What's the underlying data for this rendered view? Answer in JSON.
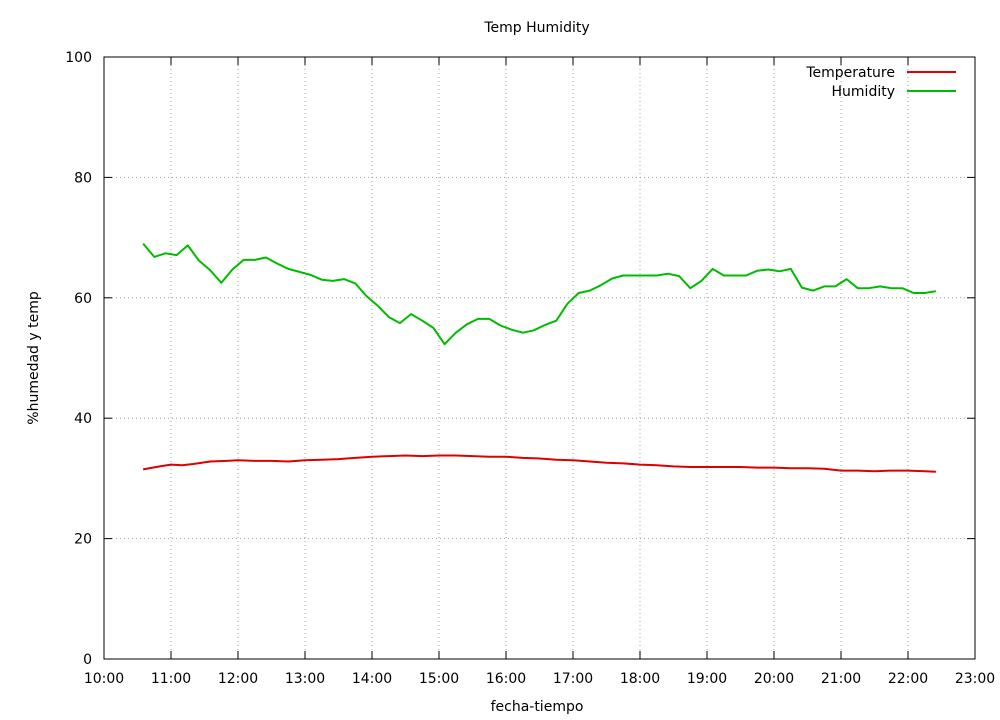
{
  "chart_data": {
    "type": "line",
    "title": "Temp Humidity",
    "xlabel": "fecha-tiempo",
    "ylabel": "%humedad y temp",
    "xlim": [
      "10:00",
      "23:00"
    ],
    "ylim": [
      0,
      100
    ],
    "x_ticks": [
      "10:00",
      "11:00",
      "12:00",
      "13:00",
      "14:00",
      "15:00",
      "16:00",
      "17:00",
      "18:00",
      "19:00",
      "20:00",
      "21:00",
      "22:00",
      "23:00"
    ],
    "y_ticks": [
      0,
      20,
      40,
      60,
      80,
      100
    ],
    "grid": true,
    "legend_position": "top-right",
    "series": [
      {
        "name": "Temperature",
        "color": "#dd0000",
        "points": [
          [
            "10:35",
            31.5
          ],
          [
            "10:50",
            32.0
          ],
          [
            "11:00",
            32.3
          ],
          [
            "11:10",
            32.2
          ],
          [
            "11:20",
            32.4
          ],
          [
            "11:35",
            32.8
          ],
          [
            "11:50",
            32.9
          ],
          [
            "12:00",
            33.0
          ],
          [
            "12:15",
            32.9
          ],
          [
            "12:30",
            32.9
          ],
          [
            "12:45",
            32.8
          ],
          [
            "13:00",
            33.0
          ],
          [
            "13:15",
            33.1
          ],
          [
            "13:30",
            33.2
          ],
          [
            "13:45",
            33.4
          ],
          [
            "14:00",
            33.6
          ],
          [
            "14:15",
            33.7
          ],
          [
            "14:30",
            33.8
          ],
          [
            "14:45",
            33.7
          ],
          [
            "15:00",
            33.8
          ],
          [
            "15:15",
            33.8
          ],
          [
            "15:30",
            33.7
          ],
          [
            "15:45",
            33.6
          ],
          [
            "16:00",
            33.6
          ],
          [
            "16:15",
            33.4
          ],
          [
            "16:30",
            33.3
          ],
          [
            "16:45",
            33.1
          ],
          [
            "17:00",
            33.0
          ],
          [
            "17:15",
            32.8
          ],
          [
            "17:30",
            32.6
          ],
          [
            "17:45",
            32.5
          ],
          [
            "18:00",
            32.3
          ],
          [
            "18:15",
            32.2
          ],
          [
            "18:30",
            32.0
          ],
          [
            "18:45",
            31.9
          ],
          [
            "19:00",
            31.9
          ],
          [
            "19:15",
            31.9
          ],
          [
            "19:30",
            31.9
          ],
          [
            "19:45",
            31.8
          ],
          [
            "20:00",
            31.8
          ],
          [
            "20:15",
            31.7
          ],
          [
            "20:30",
            31.7
          ],
          [
            "20:45",
            31.6
          ],
          [
            "21:00",
            31.3
          ],
          [
            "21:15",
            31.3
          ],
          [
            "21:30",
            31.2
          ],
          [
            "21:45",
            31.3
          ],
          [
            "22:00",
            31.3
          ],
          [
            "22:15",
            31.2
          ],
          [
            "22:25",
            31.1
          ]
        ]
      },
      {
        "name": "Humidity",
        "color": "#00bb00",
        "points": [
          [
            "10:35",
            69.0
          ],
          [
            "10:45",
            66.8
          ],
          [
            "10:55",
            67.4
          ],
          [
            "11:05",
            67.1
          ],
          [
            "11:15",
            68.7
          ],
          [
            "11:25",
            66.2
          ],
          [
            "11:35",
            64.6
          ],
          [
            "11:45",
            62.5
          ],
          [
            "11:55",
            64.7
          ],
          [
            "12:05",
            66.3
          ],
          [
            "12:15",
            66.3
          ],
          [
            "12:25",
            66.7
          ],
          [
            "12:35",
            65.7
          ],
          [
            "12:45",
            64.8
          ],
          [
            "12:55",
            64.3
          ],
          [
            "13:05",
            63.8
          ],
          [
            "13:15",
            63.0
          ],
          [
            "13:25",
            62.8
          ],
          [
            "13:35",
            63.1
          ],
          [
            "13:45",
            62.4
          ],
          [
            "13:55",
            60.3
          ],
          [
            "14:05",
            58.7
          ],
          [
            "14:15",
            56.8
          ],
          [
            "14:25",
            55.8
          ],
          [
            "14:35",
            57.3
          ],
          [
            "14:45",
            56.2
          ],
          [
            "14:55",
            55.0
          ],
          [
            "15:05",
            52.3
          ],
          [
            "15:15",
            54.2
          ],
          [
            "15:25",
            55.6
          ],
          [
            "15:35",
            56.5
          ],
          [
            "15:45",
            56.5
          ],
          [
            "15:55",
            55.4
          ],
          [
            "16:05",
            54.7
          ],
          [
            "16:15",
            54.2
          ],
          [
            "16:25",
            54.6
          ],
          [
            "16:35",
            55.5
          ],
          [
            "16:45",
            56.2
          ],
          [
            "16:55",
            59.0
          ],
          [
            "17:05",
            60.8
          ],
          [
            "17:15",
            61.2
          ],
          [
            "17:25",
            62.1
          ],
          [
            "17:35",
            63.2
          ],
          [
            "17:45",
            63.7
          ],
          [
            "17:55",
            63.7
          ],
          [
            "18:05",
            63.7
          ],
          [
            "18:15",
            63.7
          ],
          [
            "18:25",
            64.0
          ],
          [
            "18:35",
            63.6
          ],
          [
            "18:45",
            61.6
          ],
          [
            "18:55",
            62.8
          ],
          [
            "19:05",
            64.8
          ],
          [
            "19:15",
            63.7
          ],
          [
            "19:25",
            63.7
          ],
          [
            "19:35",
            63.7
          ],
          [
            "19:45",
            64.5
          ],
          [
            "19:55",
            64.7
          ],
          [
            "20:05",
            64.4
          ],
          [
            "20:15",
            64.8
          ],
          [
            "20:25",
            61.7
          ],
          [
            "20:35",
            61.2
          ],
          [
            "20:45",
            61.9
          ],
          [
            "20:55",
            61.9
          ],
          [
            "21:05",
            63.1
          ],
          [
            "21:15",
            61.6
          ],
          [
            "21:25",
            61.6
          ],
          [
            "21:35",
            61.9
          ],
          [
            "21:45",
            61.6
          ],
          [
            "21:55",
            61.6
          ],
          [
            "22:05",
            60.8
          ],
          [
            "22:15",
            60.8
          ],
          [
            "22:25",
            61.1
          ]
        ]
      }
    ]
  }
}
